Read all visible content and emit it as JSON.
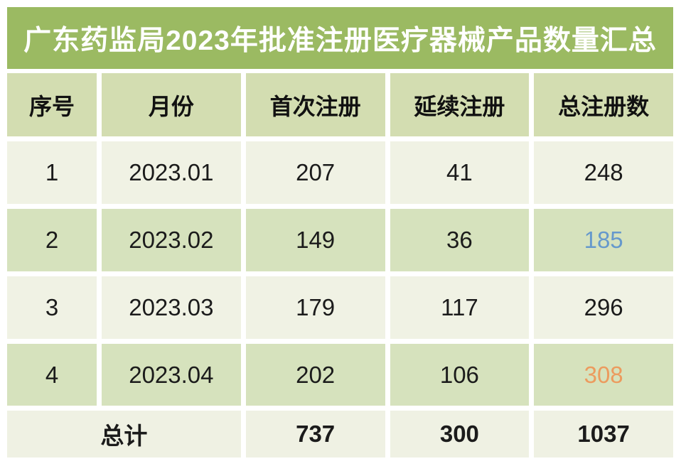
{
  "title": "广东药监局2023年批准注册医疗器械产品数量汇总",
  "chart_data": {
    "type": "table",
    "title": "广东药监局2023年批准注册医疗器械产品数量汇总",
    "columns": [
      "序号",
      "月份",
      "首次注册",
      "延续注册",
      "总注册数"
    ],
    "rows": [
      {
        "no": "1",
        "month": "2023.01",
        "first_reg": "207",
        "renewal_reg": "41",
        "total_reg": "248",
        "total_color": "#1b1b1b"
      },
      {
        "no": "2",
        "month": "2023.02",
        "first_reg": "149",
        "renewal_reg": "36",
        "total_reg": "185",
        "total_color": "#6699cc"
      },
      {
        "no": "3",
        "month": "2023.03",
        "first_reg": "179",
        "renewal_reg": "117",
        "total_reg": "296",
        "total_color": "#1b1b1b"
      },
      {
        "no": "4",
        "month": "2023.04",
        "first_reg": "202",
        "renewal_reg": "106",
        "total_reg": "308",
        "total_color": "#ec9b5e"
      }
    ],
    "summary_row": {
      "label": "总计",
      "first_reg": "737",
      "renewal_reg": "300",
      "total_reg": "1037"
    }
  },
  "colors": {
    "title_bar_green": "#9bba62",
    "title_text": "#ffffff",
    "header_row_green": "#d3ddb1",
    "row_light": "#f0f2e4",
    "row_green": "#d6e2bd",
    "summary_row_bg": "#eff1e3",
    "highlight_blue": "#6699cc",
    "highlight_orange": "#ec9b5e",
    "text_dark": "#1b1b1b"
  }
}
